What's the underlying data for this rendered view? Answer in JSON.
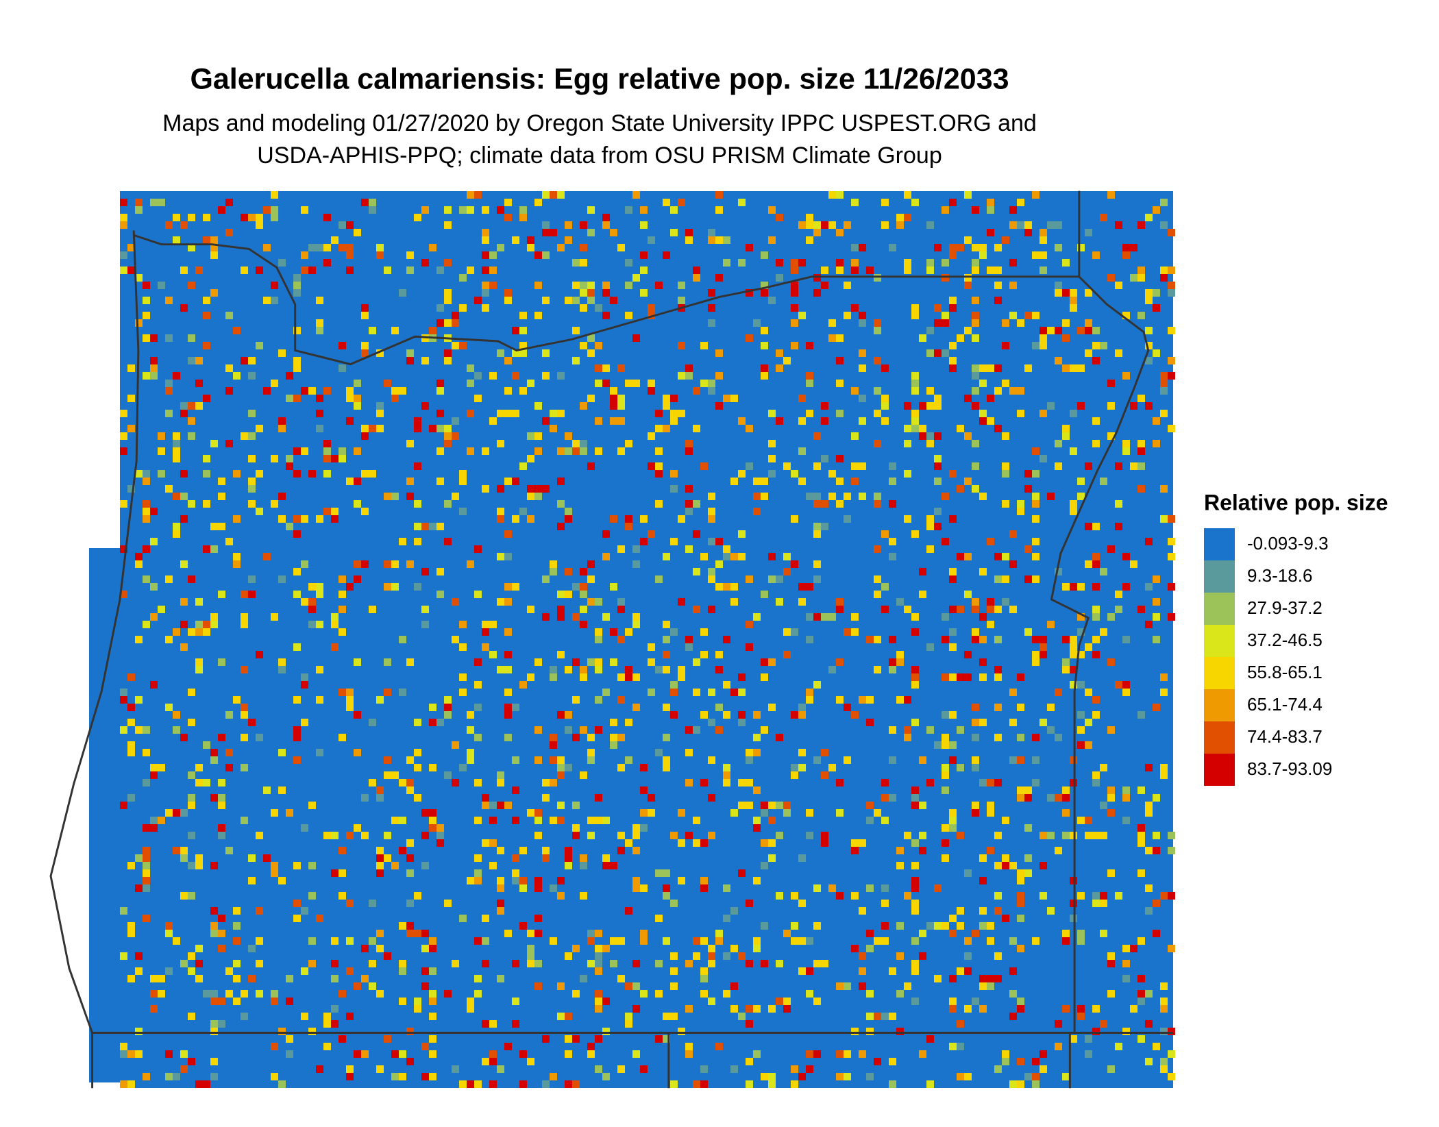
{
  "title": "Galerucella calmariensis: Egg relative pop. size 11/26/2033",
  "subtitle": [
    "Maps and modeling 01/27/2020 by Oregon State University IPPC USPEST.ORG and",
    "USDA-APHIS-PPQ; climate data from OSU PRISM Climate Group"
  ],
  "legend": {
    "title": "Relative pop. size",
    "items": [
      {
        "label": "-0.093-9.3",
        "color": "#1b74cc"
      },
      {
        "label": "9.3-18.6",
        "color": "#5a9a9c"
      },
      {
        "label": "27.9-37.2",
        "color": "#9cc25a"
      },
      {
        "label": "37.2-46.5",
        "color": "#dbe61a"
      },
      {
        "label": "55.8-65.1",
        "color": "#f7d600"
      },
      {
        "label": "65.1-74.4",
        "color": "#ee9a00"
      },
      {
        "label": "74.4-83.7",
        "color": "#e05000"
      },
      {
        "label": "83.7-93.09",
        "color": "#d40000"
      }
    ]
  }
}
